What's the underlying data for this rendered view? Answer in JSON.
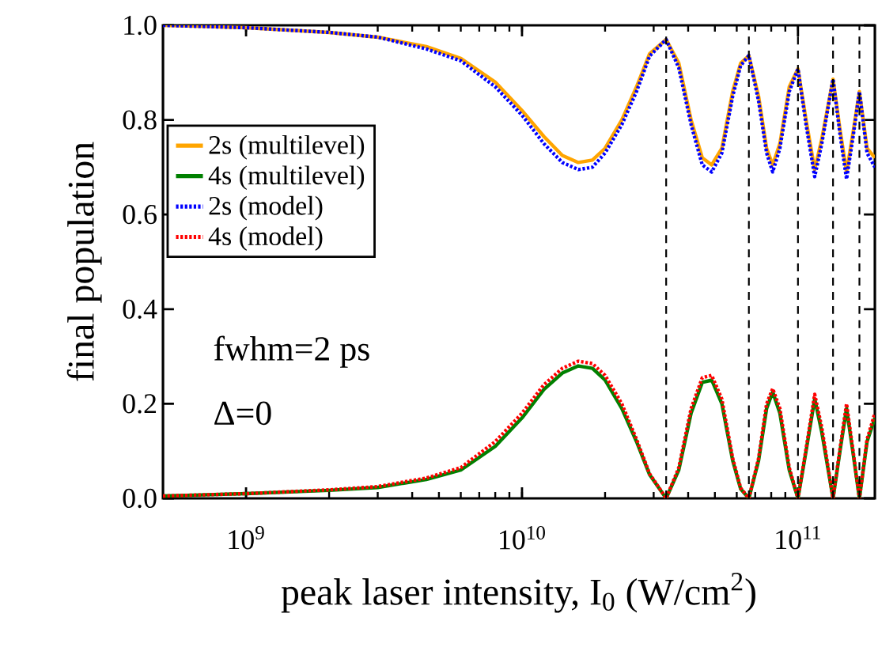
{
  "chart_data": {
    "type": "line",
    "xlabel": "peak laser intensity, I$_{0}$ (W/cm$^{2}$)",
    "ylabel": "final population",
    "log": "x",
    "grid": false,
    "legend": "left",
    "marker": "none",
    "xlim": [
      500000000.0,
      190000000000.0
    ],
    "ylim": [
      0,
      1
    ],
    "xticks": [
      {
        "value": 1000000000.0,
        "label": "10$^{9}$"
      },
      {
        "value": 10000000000.0,
        "label": "10$^{10}$"
      },
      {
        "value": 100000000000.0,
        "label": "10$^{11}$"
      }
    ],
    "yticks": [
      {
        "value": 0,
        "label": "0.0"
      },
      {
        "value": 0.2,
        "label": "0.2"
      },
      {
        "value": 0.4,
        "label": "0.4"
      },
      {
        "value": 0.6,
        "label": "0.6"
      },
      {
        "value": 0.8,
        "label": "0.8"
      },
      {
        "value": 1,
        "label": "1.0"
      }
    ],
    "x": [
      500000000.0,
      1000000000.0,
      2000000000.0,
      3000000000.0,
      4500000000.0,
      6000000000.0,
      8000000000.0,
      10000000000.0,
      12000000000.0,
      14000000000.0,
      16000000000.0,
      18000000000.0,
      20000000000.0,
      23000000000.0,
      26000000000.0,
      29000000000.0,
      33300000000.0,
      37000000000.0,
      41000000000.0,
      45000000000.0,
      48700000000.0,
      53000000000.0,
      58000000000.0,
      62000000000.0,
      66400000000.0,
      72000000000.0,
      77000000000.0,
      81000000000.0,
      86000000000.0,
      93000000000.0,
      100000000000.0,
      107000000000.0,
      115000000000.0,
      122000000000.0,
      134000000000.0,
      142000000000.0,
      150000000000.0,
      158000000000.0,
      167000000000.0,
      178000000000.0,
      190000000000.0
    ],
    "series": [
      {
        "name": "2s (multilevel)",
        "color": "#ffa500",
        "line_style": "solid",
        "values": [
          1.0,
          0.995,
          0.985,
          0.975,
          0.955,
          0.93,
          0.88,
          0.82,
          0.765,
          0.725,
          0.71,
          0.715,
          0.74,
          0.8,
          0.87,
          0.94,
          0.97,
          0.92,
          0.8,
          0.72,
          0.705,
          0.74,
          0.86,
          0.92,
          0.936,
          0.85,
          0.74,
          0.705,
          0.75,
          0.87,
          0.908,
          0.8,
          0.695,
          0.76,
          0.886,
          0.78,
          0.69,
          0.77,
          0.86,
          0.74,
          0.72
        ]
      },
      {
        "name": "4s (multilevel)",
        "color": "#008000",
        "line_style": "solid",
        "values": [
          0.005,
          0.01,
          0.017,
          0.023,
          0.04,
          0.06,
          0.11,
          0.17,
          0.23,
          0.265,
          0.28,
          0.275,
          0.25,
          0.19,
          0.12,
          0.05,
          0.0,
          0.06,
          0.18,
          0.245,
          0.25,
          0.2,
          0.08,
          0.02,
          0.0,
          0.08,
          0.19,
          0.225,
          0.18,
          0.06,
          0.0,
          0.1,
          0.21,
          0.14,
          0.0,
          0.1,
          0.19,
          0.1,
          0.0,
          0.12,
          0.17
        ]
      },
      {
        "name": "2s (model)",
        "color": "#0000ff",
        "line_style": "dotted",
        "values": [
          1.0,
          0.995,
          0.985,
          0.975,
          0.95,
          0.925,
          0.87,
          0.81,
          0.75,
          0.71,
          0.695,
          0.7,
          0.73,
          0.79,
          0.86,
          0.935,
          0.97,
          0.91,
          0.79,
          0.705,
          0.69,
          0.73,
          0.85,
          0.915,
          0.936,
          0.84,
          0.73,
          0.69,
          0.74,
          0.86,
          0.908,
          0.79,
          0.68,
          0.75,
          0.886,
          0.77,
          0.675,
          0.76,
          0.86,
          0.73,
          0.7
        ]
      },
      {
        "name": "4s (model)",
        "color": "#ff0000",
        "line_style": "dotted",
        "values": [
          0.005,
          0.01,
          0.018,
          0.025,
          0.043,
          0.065,
          0.12,
          0.18,
          0.24,
          0.275,
          0.29,
          0.285,
          0.26,
          0.2,
          0.125,
          0.052,
          0.0,
          0.065,
          0.19,
          0.255,
          0.26,
          0.21,
          0.085,
          0.022,
          0.0,
          0.085,
          0.2,
          0.232,
          0.19,
          0.065,
          0.0,
          0.105,
          0.22,
          0.15,
          0.0,
          0.105,
          0.2,
          0.105,
          0.0,
          0.125,
          0.18
        ]
      }
    ],
    "ref_lines": [
      {
        "axis": "x",
        "value": 33300000000.0,
        "color": "#000000",
        "line_style": "dashed"
      },
      {
        "axis": "x",
        "value": 66400000000.0,
        "color": "#000000",
        "line_style": "dashed"
      },
      {
        "axis": "x",
        "value": 100000000000.0,
        "color": "#000000",
        "line_style": "dashed"
      },
      {
        "axis": "x",
        "value": 134000000000.0,
        "color": "#000000",
        "line_style": "dashed"
      },
      {
        "axis": "x",
        "value": 167000000000.0,
        "color": "#000000",
        "line_style": "dashed"
      }
    ],
    "annotations": [
      "fwhm=2 ps",
      "Δ=0"
    ]
  }
}
